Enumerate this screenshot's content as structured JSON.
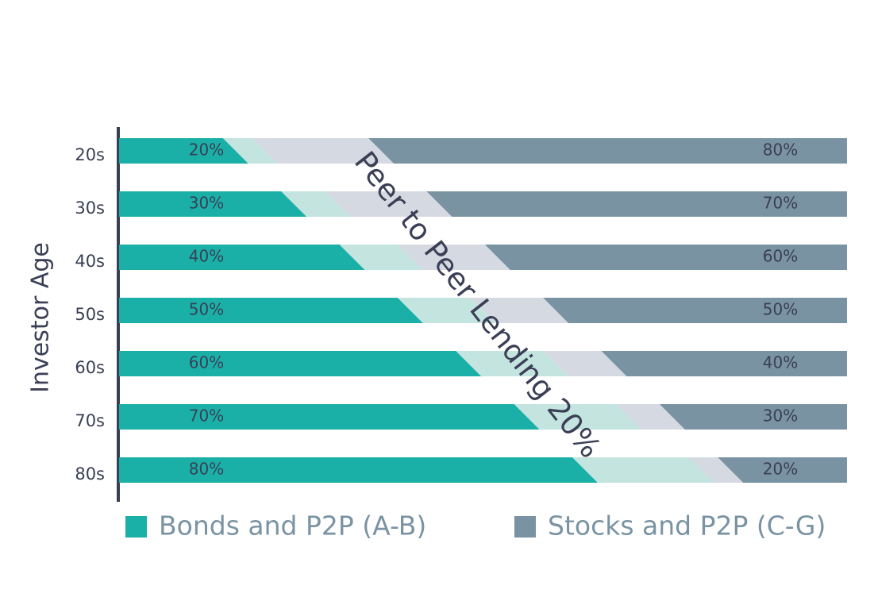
{
  "chart_data": {
    "type": "stacked-bar-horizontal",
    "y_label": "Investor Age",
    "categories": [
      "20s",
      "30s",
      "40s",
      "50s",
      "60s",
      "70s",
      "80s"
    ],
    "series": [
      {
        "name": "Bonds and P2P (A-B)",
        "color": "#1ab0a8",
        "band_color": "#c4e4e0",
        "values": [
          20,
          30,
          40,
          50,
          60,
          70,
          80
        ],
        "value_labels": [
          "20%",
          "30%",
          "40%",
          "50%",
          "60%",
          "70%",
          "80%"
        ]
      },
      {
        "name": "Stocks and P2P (C-G)",
        "color": "#7a93a3",
        "band_color": "#d5d9e1",
        "values": [
          80,
          70,
          60,
          50,
          40,
          30,
          20
        ],
        "value_labels": [
          "80%",
          "70%",
          "60%",
          "50%",
          "40%",
          "30%",
          "20%"
        ]
      }
    ],
    "annotation": {
      "text": "Peer to Peer Lending 20%",
      "value": 20
    },
    "xlim": [
      0,
      100
    ]
  }
}
